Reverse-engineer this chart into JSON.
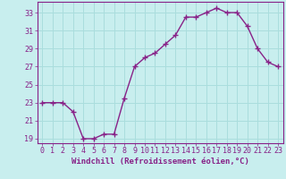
{
  "x": [
    0,
    1,
    2,
    3,
    4,
    5,
    6,
    7,
    8,
    9,
    10,
    11,
    12,
    13,
    14,
    15,
    16,
    17,
    18,
    19,
    20,
    21,
    22,
    23
  ],
  "y": [
    23,
    23,
    23,
    22,
    19,
    19,
    19.5,
    19.5,
    23.5,
    27,
    28,
    28.5,
    29.5,
    30.5,
    32.5,
    32.5,
    33,
    33.5,
    33,
    33,
    31.5,
    29,
    27.5,
    27
  ],
  "line_color": "#882288",
  "marker": "+",
  "marker_size": 4,
  "bg_color": "#c8eeee",
  "grid_color": "#aadddd",
  "xlabel": "Windchill (Refroidissement éolien,°C)",
  "xlim": [
    -0.5,
    23.5
  ],
  "ylim": [
    18.5,
    34.2
  ],
  "yticks": [
    19,
    21,
    23,
    25,
    27,
    29,
    31,
    33
  ],
  "xticks": [
    0,
    1,
    2,
    3,
    4,
    5,
    6,
    7,
    8,
    9,
    10,
    11,
    12,
    13,
    14,
    15,
    16,
    17,
    18,
    19,
    20,
    21,
    22,
    23
  ],
  "xlabel_fontsize": 6.5,
  "tick_fontsize": 6,
  "line_width": 1.0,
  "marker_lw": 1.0
}
